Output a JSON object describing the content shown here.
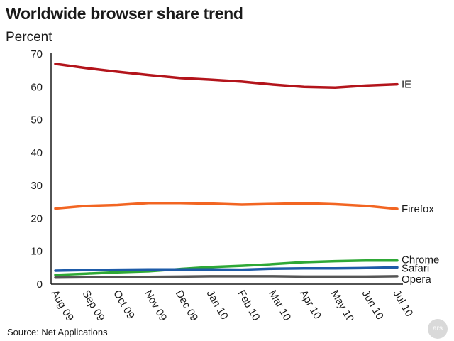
{
  "chart_data": {
    "type": "line",
    "title": "Worldwide browser share trend",
    "ylabel": "Percent",
    "xlabel": "",
    "source": "Source: Net Applications",
    "categories": [
      "Aug 09",
      "Sep 09",
      "Oct 09",
      "Nov 09",
      "Dec 09",
      "Jan 10",
      "Feb 10",
      "Mar 10",
      "Apr 10",
      "May 10",
      "Jun 10",
      "Jul 10"
    ],
    "ylim": [
      0,
      70
    ],
    "yticks": [
      0,
      10,
      20,
      30,
      40,
      50,
      60,
      70
    ],
    "grid": false,
    "legend": "labels at line ends (right)",
    "series": [
      {
        "name": "IE",
        "color": "#b3141b",
        "values": [
          67.0,
          65.7,
          64.6,
          63.6,
          62.7,
          62.2,
          61.6,
          60.7,
          60.0,
          59.8,
          60.4,
          60.8
        ]
      },
      {
        "name": "Firefox",
        "color": "#f26522",
        "values": [
          23.0,
          23.8,
          24.1,
          24.7,
          24.7,
          24.5,
          24.2,
          24.4,
          24.6,
          24.3,
          23.8,
          22.9
        ]
      },
      {
        "name": "Chrome",
        "color": "#2ea836",
        "values": [
          2.8,
          3.2,
          3.6,
          3.9,
          4.6,
          5.2,
          5.6,
          6.1,
          6.7,
          7.0,
          7.2,
          7.2
        ]
      },
      {
        "name": "Safari",
        "color": "#1e5ba8",
        "values": [
          4.1,
          4.3,
          4.4,
          4.5,
          4.5,
          4.5,
          4.4,
          4.7,
          4.8,
          4.8,
          4.9,
          5.1
        ]
      },
      {
        "name": "Opera",
        "color": "#555555",
        "values": [
          2.0,
          2.1,
          2.2,
          2.2,
          2.3,
          2.4,
          2.4,
          2.4,
          2.3,
          2.3,
          2.3,
          2.4
        ]
      }
    ]
  },
  "logo_text": "ars"
}
